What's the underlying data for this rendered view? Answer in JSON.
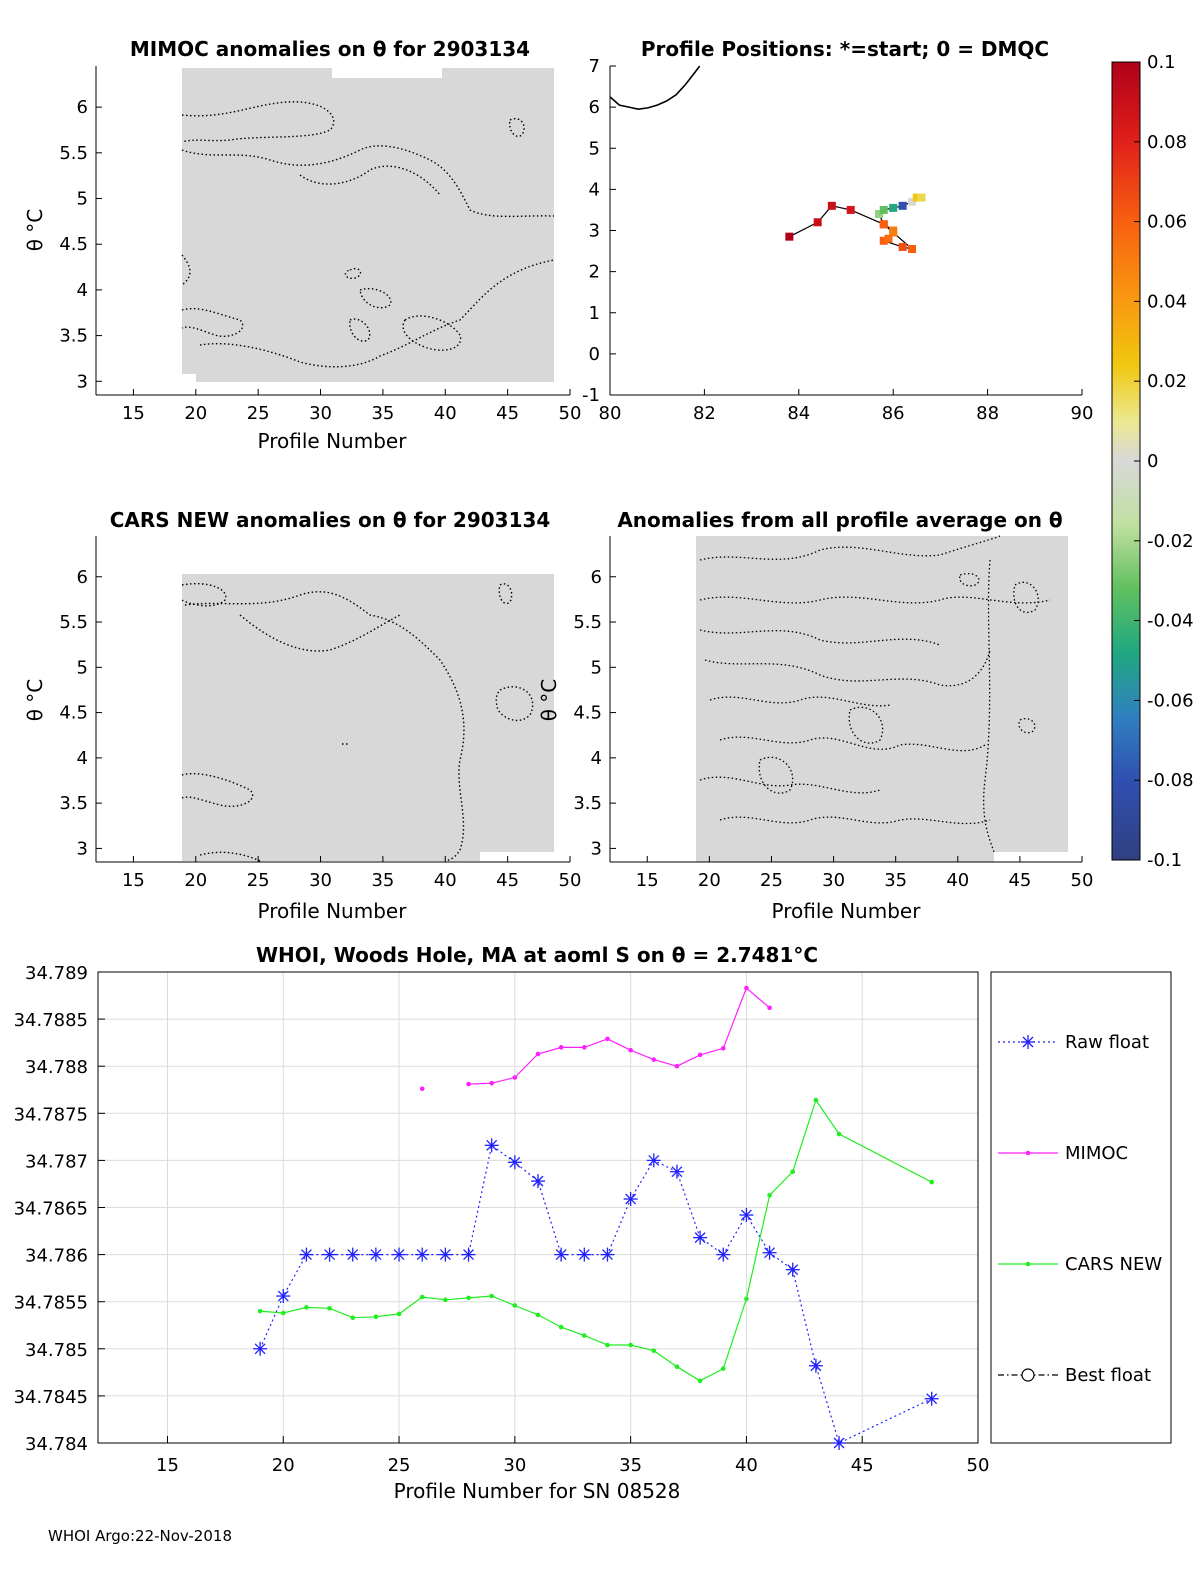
{
  "footer": "WHOI Argo:22-Nov-2018",
  "colors": {
    "field": "#d8d8d8",
    "raw_float": "#2020ff",
    "mimoc": "#ff20ff",
    "cars_new": "#20ee20",
    "best_float": "#000000"
  },
  "panels": {
    "mimoc": {
      "title": "MIMOC anomalies on θ  for 2903134",
      "xlabel": "Profile Number",
      "ylabel": "θ °C",
      "xticks": [
        "15",
        "20",
        "25",
        "30",
        "35",
        "40",
        "45",
        "50"
      ],
      "yticks": [
        "6",
        "5.5",
        "5",
        "4.5",
        "4",
        "3.5",
        "3"
      ]
    },
    "positions": {
      "title": "Profile Positions: *=start; 0 = DMQC",
      "xticks": [
        "80",
        "82",
        "84",
        "86",
        "88",
        "90"
      ],
      "yticks": [
        "7",
        "6",
        "5",
        "4",
        "3",
        "2",
        "1",
        "0",
        "-1"
      ]
    },
    "cars": {
      "title": "CARS NEW anomalies on θ for 2903134",
      "xlabel": "Profile Number",
      "ylabel": "θ °C",
      "xticks": [
        "15",
        "20",
        "25",
        "30",
        "35",
        "40",
        "45",
        "50"
      ],
      "yticks": [
        "6",
        "5.5",
        "5",
        "4.5",
        "4",
        "3.5",
        "3"
      ]
    },
    "allavg": {
      "title": "Anomalies from all profile average on θ",
      "xlabel": "Profile Number",
      "ylabel": "θ °C",
      "xticks": [
        "15",
        "20",
        "25",
        "30",
        "35",
        "40",
        "45",
        "50"
      ],
      "yticks": [
        "6",
        "5.5",
        "5",
        "4.5",
        "4",
        "3.5",
        "3"
      ]
    },
    "colorbar": {
      "ticks": [
        "0.1",
        "0.08",
        "0.06",
        "0.04",
        "0.02",
        "0",
        "-0.02",
        "-0.04",
        "-0.06",
        "-0.08",
        "-0.1"
      ]
    }
  },
  "chart_data": [
    {
      "type": "line",
      "title": "WHOI, Woods Hole, MA at aoml S on θ = 2.7481°C",
      "xlabel": "Profile Number for SN 08528",
      "ylabel": "",
      "xlim": [
        12,
        50
      ],
      "ylim": [
        34.784,
        34.789
      ],
      "xticks": [
        "15",
        "20",
        "25",
        "30",
        "35",
        "40",
        "45",
        "50"
      ],
      "yticks": [
        "34.789",
        "34.7885",
        "34.788",
        "34.7875",
        "34.787",
        "34.7865",
        "34.786",
        "34.7855",
        "34.785",
        "34.7845",
        "34.784"
      ],
      "grid": true,
      "legend_position": "right",
      "series": [
        {
          "name": "Raw float",
          "x": [
            19,
            20,
            21,
            22,
            23,
            24,
            25,
            26,
            27,
            28,
            29,
            30,
            31,
            32,
            33,
            34,
            35,
            36,
            37,
            38,
            39,
            40,
            41,
            42,
            43,
            44,
            48
          ],
          "y": [
            34.785,
            34.78556,
            34.786,
            34.786,
            34.786,
            34.786,
            34.786,
            34.786,
            34.786,
            34.786,
            34.78716,
            34.78698,
            34.78678,
            34.786,
            34.786,
            34.786,
            34.78659,
            34.787,
            34.78688,
            34.78618,
            34.786,
            34.78642,
            34.78602,
            34.78584,
            34.78482,
            34.784,
            34.78447
          ]
        },
        {
          "name": "MIMOC",
          "x": [
            26,
            28,
            29,
            30,
            31,
            32,
            33,
            34,
            35,
            36,
            37,
            38,
            39,
            40,
            41
          ],
          "y": [
            34.78776,
            34.78781,
            34.78782,
            34.78788,
            34.78813,
            34.7882,
            34.7882,
            34.78829,
            34.78817,
            34.78807,
            34.788,
            34.78812,
            34.78819,
            34.78883,
            34.78862
          ]
        },
        {
          "name": "CARS NEW",
          "x": [
            19,
            20,
            21,
            22,
            23,
            24,
            25,
            26,
            27,
            28,
            29,
            30,
            31,
            32,
            33,
            34,
            35,
            36,
            37,
            38,
            39,
            40,
            41,
            42,
            43,
            44,
            48
          ],
          "y": [
            34.7854,
            34.78538,
            34.78544,
            34.78543,
            34.78533,
            34.78534,
            34.78537,
            34.78555,
            34.78552,
            34.78554,
            34.78556,
            34.78546,
            34.78536,
            34.78523,
            34.78514,
            34.78504,
            34.78504,
            34.78498,
            34.78481,
            34.78466,
            34.78479,
            34.78553,
            34.78663,
            34.78688,
            34.78764,
            34.78728,
            34.78677
          ]
        },
        {
          "name": "Best float",
          "x": [],
          "y": []
        }
      ]
    },
    {
      "type": "scatter",
      "title": "Profile Positions: *=start; 0 = DMQC",
      "xlim": [
        80,
        90
      ],
      "ylim": [
        -1,
        7
      ],
      "coastline": {
        "x": [
          80.0,
          80.2,
          80.4,
          80.6,
          80.8,
          81.0,
          81.2,
          81.4,
          81.6,
          81.8,
          81.9
        ],
        "y": [
          6.25,
          6.05,
          6.0,
          5.95,
          5.98,
          6.05,
          6.15,
          6.3,
          6.55,
          6.85,
          7.0
        ]
      },
      "track": {
        "x": [
          83.8,
          84.4,
          84.7,
          85.1,
          85.8,
          86.0,
          86.4,
          86.2,
          85.8,
          85.9,
          86.0,
          85.8,
          85.7,
          85.8,
          86.0,
          86.2,
          86.4,
          86.5,
          86.6
        ],
        "y": [
          2.85,
          3.2,
          3.6,
          3.5,
          3.15,
          2.95,
          2.55,
          2.6,
          2.75,
          2.8,
          3.0,
          3.15,
          3.4,
          3.5,
          3.55,
          3.6,
          3.7,
          3.8,
          3.8
        ],
        "anomaly": [
          0.1,
          0.09,
          0.09,
          0.085,
          0.07,
          0.05,
          0.06,
          0.065,
          0.06,
          0.055,
          0.05,
          0.06,
          -0.03,
          -0.04,
          -0.06,
          -0.08,
          0.0,
          0.03,
          0.025
        ]
      }
    }
  ]
}
